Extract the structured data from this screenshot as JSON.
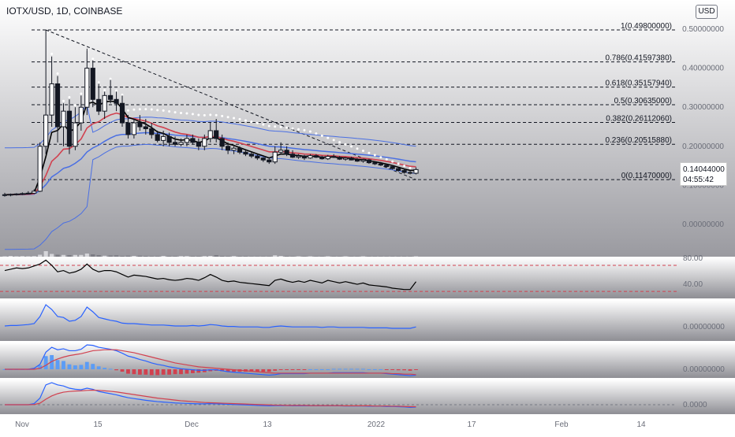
{
  "header": {
    "symbol_title": "IOTX/USD, 1D, COINBASE",
    "currency_button": "USD"
  },
  "price_box": {
    "price": "0.14044000",
    "countdown": "04:55:42"
  },
  "colors": {
    "bull": "#ffffff",
    "bear": "#131722",
    "ema_fast": "#000000",
    "ema_slow": "#d1414f",
    "bb": "#4a6fe3",
    "dots": "#ffffff",
    "fib": "#131722",
    "rsi": "#000000",
    "rsi_band": "#d1414f",
    "osc": "#2962ff",
    "macd": "#2962ff",
    "signal": "#d1414f",
    "hist_up": "#5b9cf6",
    "hist_down": "#d1414f"
  },
  "chart_data": {
    "type": "candlestick",
    "title": "IOTX/USD, 1D, COINBASE",
    "ylim": [
      0.0,
      0.5
    ],
    "x_ticks": [
      "Nov",
      "15",
      "Dec",
      "13",
      "2022",
      "17",
      "Feb",
      "14"
    ],
    "y_ticks": [
      "0.50000000",
      "0.40000000",
      "0.30000000",
      "0.20000000",
      "0.10000000",
      "0.00000000"
    ],
    "fib_levels": [
      {
        "ratio": 1,
        "label": "1(0.49800000)",
        "value": 0.498
      },
      {
        "ratio": 0.786,
        "label": "0.786(0.41597380)",
        "value": 0.4159738
      },
      {
        "ratio": 0.618,
        "label": "0.618(0.35157940)",
        "value": 0.3515794
      },
      {
        "ratio": 0.5,
        "label": "0.5(0.30635000)",
        "value": 0.30635
      },
      {
        "ratio": 0.382,
        "label": "0.382(0.26112060)",
        "value": 0.2611206
      },
      {
        "ratio": 0.236,
        "label": "0.236(0.20515880)",
        "value": 0.2051588
      },
      {
        "ratio": 0,
        "label": "0(0.11470000)",
        "value": 0.1147
      }
    ],
    "candles": [
      [
        0.074,
        0.081,
        0.071,
        0.076
      ],
      [
        0.076,
        0.079,
        0.072,
        0.077
      ],
      [
        0.077,
        0.08,
        0.074,
        0.078
      ],
      [
        0.078,
        0.082,
        0.075,
        0.079
      ],
      [
        0.079,
        0.085,
        0.077,
        0.08
      ],
      [
        0.08,
        0.09,
        0.078,
        0.085
      ],
      [
        0.085,
        0.21,
        0.083,
        0.2
      ],
      [
        0.2,
        0.498,
        0.18,
        0.28
      ],
      [
        0.28,
        0.43,
        0.25,
        0.36
      ],
      [
        0.36,
        0.38,
        0.21,
        0.25
      ],
      [
        0.25,
        0.31,
        0.2,
        0.29
      ],
      [
        0.29,
        0.32,
        0.18,
        0.2
      ],
      [
        0.2,
        0.3,
        0.19,
        0.26
      ],
      [
        0.26,
        0.33,
        0.24,
        0.3
      ],
      [
        0.3,
        0.45,
        0.28,
        0.4
      ],
      [
        0.4,
        0.42,
        0.3,
        0.32
      ],
      [
        0.32,
        0.36,
        0.28,
        0.29
      ],
      [
        0.29,
        0.34,
        0.27,
        0.33
      ],
      [
        0.33,
        0.37,
        0.31,
        0.32
      ],
      [
        0.32,
        0.34,
        0.29,
        0.31
      ],
      [
        0.31,
        0.33,
        0.25,
        0.26
      ],
      [
        0.26,
        0.28,
        0.22,
        0.23
      ],
      [
        0.23,
        0.27,
        0.22,
        0.26
      ],
      [
        0.26,
        0.28,
        0.24,
        0.25
      ],
      [
        0.25,
        0.27,
        0.23,
        0.245
      ],
      [
        0.245,
        0.26,
        0.22,
        0.23
      ],
      [
        0.23,
        0.24,
        0.21,
        0.215
      ],
      [
        0.215,
        0.24,
        0.2,
        0.225
      ],
      [
        0.225,
        0.235,
        0.2,
        0.21
      ],
      [
        0.21,
        0.225,
        0.2,
        0.205
      ],
      [
        0.205,
        0.22,
        0.2,
        0.21
      ],
      [
        0.21,
        0.23,
        0.2,
        0.22
      ],
      [
        0.22,
        0.23,
        0.205,
        0.21
      ],
      [
        0.21,
        0.22,
        0.19,
        0.2
      ],
      [
        0.2,
        0.23,
        0.19,
        0.22
      ],
      [
        0.22,
        0.26,
        0.21,
        0.24
      ],
      [
        0.24,
        0.27,
        0.21,
        0.22
      ],
      [
        0.22,
        0.23,
        0.19,
        0.2
      ],
      [
        0.2,
        0.21,
        0.18,
        0.19
      ],
      [
        0.19,
        0.2,
        0.18,
        0.195
      ],
      [
        0.195,
        0.2,
        0.18,
        0.185
      ],
      [
        0.185,
        0.19,
        0.175,
        0.18
      ],
      [
        0.18,
        0.185,
        0.17,
        0.175
      ],
      [
        0.175,
        0.18,
        0.165,
        0.17
      ],
      [
        0.17,
        0.172,
        0.16,
        0.165
      ],
      [
        0.165,
        0.17,
        0.155,
        0.16
      ],
      [
        0.16,
        0.2,
        0.155,
        0.185
      ],
      [
        0.185,
        0.21,
        0.18,
        0.19
      ],
      [
        0.19,
        0.2,
        0.175,
        0.18
      ],
      [
        0.18,
        0.19,
        0.17,
        0.172
      ],
      [
        0.172,
        0.18,
        0.168,
        0.175
      ],
      [
        0.175,
        0.178,
        0.165,
        0.17
      ],
      [
        0.17,
        0.18,
        0.168,
        0.176
      ],
      [
        0.176,
        0.18,
        0.17,
        0.172
      ],
      [
        0.172,
        0.176,
        0.166,
        0.168
      ],
      [
        0.168,
        0.178,
        0.165,
        0.174
      ],
      [
        0.174,
        0.18,
        0.17,
        0.172
      ],
      [
        0.172,
        0.175,
        0.165,
        0.167
      ],
      [
        0.167,
        0.172,
        0.163,
        0.17
      ],
      [
        0.17,
        0.173,
        0.164,
        0.165
      ],
      [
        0.165,
        0.17,
        0.16,
        0.162
      ],
      [
        0.162,
        0.168,
        0.158,
        0.165
      ],
      [
        0.165,
        0.168,
        0.155,
        0.158
      ],
      [
        0.158,
        0.162,
        0.152,
        0.155
      ],
      [
        0.155,
        0.16,
        0.15,
        0.152
      ],
      [
        0.152,
        0.155,
        0.145,
        0.148
      ],
      [
        0.148,
        0.152,
        0.14,
        0.143
      ],
      [
        0.143,
        0.146,
        0.135,
        0.138
      ],
      [
        0.138,
        0.142,
        0.13,
        0.133
      ],
      [
        0.133,
        0.138,
        0.128,
        0.131
      ],
      [
        0.131,
        0.146,
        0.128,
        0.1404
      ]
    ],
    "volume": [
      2,
      4,
      2,
      3,
      2,
      3,
      10,
      28,
      14,
      10,
      9,
      8,
      9,
      9,
      16,
      12,
      8,
      5,
      6,
      7,
      4,
      5,
      4,
      5,
      4,
      3,
      3,
      4,
      3,
      3,
      3,
      3,
      3,
      3,
      3,
      4,
      8,
      4,
      3,
      3,
      3,
      3,
      2,
      2,
      2,
      2,
      7,
      4,
      3,
      2,
      2,
      2,
      2,
      2,
      2,
      2,
      2,
      2,
      2,
      2,
      2,
      2,
      2,
      2,
      2,
      2,
      2,
      2,
      2,
      2,
      2
    ],
    "rsi": {
      "upper": 70,
      "lower": 30,
      "tick_labels": [
        "80.00",
        "40.00"
      ],
      "values": [
        62,
        64,
        66,
        65,
        66,
        69,
        72,
        78,
        70,
        60,
        62,
        58,
        60,
        64,
        72,
        64,
        60,
        62,
        62,
        60,
        56,
        52,
        55,
        54,
        53,
        51,
        49,
        50,
        48,
        47,
        48,
        50,
        49,
        47,
        51,
        56,
        52,
        47,
        45,
        46,
        44,
        43,
        42,
        41,
        40,
        39,
        47,
        49,
        46,
        44,
        46,
        44,
        47,
        45,
        43,
        47,
        45,
        43,
        45,
        43,
        41,
        43,
        40,
        39,
        38,
        37,
        35,
        34,
        33,
        33,
        45
      ]
    },
    "oscillator": {
      "tick_labels": [
        "0.00000000"
      ],
      "values": [
        0.0,
        0.01,
        0.01,
        0.02,
        0.03,
        0.05,
        0.2,
        0.45,
        0.35,
        0.2,
        0.18,
        0.1,
        0.12,
        0.2,
        0.4,
        0.3,
        0.18,
        0.15,
        0.12,
        0.1,
        0.06,
        0.05,
        0.05,
        0.04,
        0.03,
        0.02,
        0.02,
        0.02,
        0.01,
        0.0,
        0.0,
        0.0,
        0.01,
        0.0,
        0.01,
        0.03,
        0.02,
        0.0,
        -0.01,
        -0.01,
        -0.02,
        -0.02,
        -0.02,
        -0.02,
        -0.03,
        -0.03,
        -0.01,
        0.0,
        -0.01,
        -0.02,
        -0.02,
        -0.02,
        -0.02,
        -0.02,
        -0.03,
        -0.02,
        -0.02,
        -0.03,
        -0.03,
        -0.03,
        -0.03,
        -0.03,
        -0.04,
        -0.04,
        -0.04,
        -0.04,
        -0.05,
        -0.05,
        -0.05,
        -0.05,
        -0.02
      ]
    },
    "macd": {
      "tick_labels": [
        "0.00000000"
      ],
      "macd": [
        0,
        0,
        0,
        0,
        0,
        0.002,
        0.01,
        0.035,
        0.045,
        0.04,
        0.042,
        0.038,
        0.038,
        0.041,
        0.05,
        0.049,
        0.045,
        0.043,
        0.041,
        0.038,
        0.033,
        0.027,
        0.024,
        0.02,
        0.017,
        0.013,
        0.01,
        0.008,
        0.005,
        0.003,
        0.001,
        0.0,
        -0.001,
        -0.002,
        -0.002,
        -0.001,
        -0.001,
        -0.003,
        -0.005,
        -0.006,
        -0.007,
        -0.008,
        -0.009,
        -0.01,
        -0.011,
        -0.012,
        -0.011,
        -0.009,
        -0.009,
        -0.009,
        -0.009,
        -0.009,
        -0.008,
        -0.008,
        -0.008,
        -0.008,
        -0.007,
        -0.007,
        -0.007,
        -0.007,
        -0.007,
        -0.007,
        -0.008,
        -0.008,
        -0.008,
        -0.009,
        -0.01,
        -0.011,
        -0.012,
        -0.013,
        -0.012
      ],
      "signal": [
        0,
        0,
        0,
        0,
        0,
        0,
        0.002,
        0.008,
        0.016,
        0.021,
        0.025,
        0.028,
        0.03,
        0.032,
        0.035,
        0.038,
        0.039,
        0.04,
        0.04,
        0.04,
        0.038,
        0.036,
        0.034,
        0.031,
        0.028,
        0.025,
        0.022,
        0.019,
        0.016,
        0.013,
        0.011,
        0.009,
        0.007,
        0.005,
        0.004,
        0.003,
        0.002,
        0.001,
        0.0,
        -0.001,
        -0.002,
        -0.003,
        -0.004,
        -0.005,
        -0.006,
        -0.007,
        -0.008,
        -0.008,
        -0.008,
        -0.008,
        -0.008,
        -0.008,
        -0.008,
        -0.008,
        -0.008,
        -0.008,
        -0.008,
        -0.008,
        -0.008,
        -0.008,
        -0.008,
        -0.008,
        -0.008,
        -0.008,
        -0.008,
        -0.008,
        -0.009,
        -0.009,
        -0.01,
        -0.01,
        -0.011
      ]
    },
    "pvo": {
      "tick_labels": [
        "0.0000"
      ],
      "line1": [
        0,
        0,
        0,
        0,
        0,
        0.05,
        0.3,
        0.9,
        1.0,
        0.9,
        0.85,
        0.75,
        0.7,
        0.68,
        0.75,
        0.7,
        0.6,
        0.55,
        0.5,
        0.45,
        0.38,
        0.32,
        0.28,
        0.24,
        0.2,
        0.17,
        0.14,
        0.12,
        0.1,
        0.08,
        0.07,
        0.06,
        0.05,
        0.04,
        0.04,
        0.05,
        0.04,
        0.03,
        0.02,
        0.01,
        0.0,
        -0.01,
        -0.02,
        -0.03,
        -0.04,
        -0.05,
        -0.04,
        -0.04,
        -0.04,
        -0.05,
        -0.05,
        -0.05,
        -0.05,
        -0.05,
        -0.05,
        -0.05,
        -0.05,
        -0.05,
        -0.06,
        -0.06,
        -0.06,
        -0.06,
        -0.07,
        -0.07,
        -0.07,
        -0.08,
        -0.08,
        -0.09,
        -0.1,
        -0.12,
        -0.11
      ],
      "line2": [
        0,
        0,
        0,
        0,
        0,
        0.01,
        0.07,
        0.25,
        0.4,
        0.5,
        0.57,
        0.6,
        0.62,
        0.63,
        0.65,
        0.66,
        0.65,
        0.63,
        0.61,
        0.58,
        0.54,
        0.5,
        0.46,
        0.42,
        0.38,
        0.34,
        0.3,
        0.27,
        0.24,
        0.21,
        0.18,
        0.16,
        0.14,
        0.12,
        0.1,
        0.09,
        0.08,
        0.07,
        0.06,
        0.05,
        0.04,
        0.03,
        0.02,
        0.01,
        0.0,
        -0.01,
        -0.02,
        -0.02,
        -0.03,
        -0.03,
        -0.03,
        -0.03,
        -0.04,
        -0.04,
        -0.04,
        -0.04,
        -0.04,
        -0.04,
        -0.05,
        -0.05,
        -0.05,
        -0.05,
        -0.05,
        -0.06,
        -0.06,
        -0.06,
        -0.07,
        -0.07,
        -0.08,
        -0.09,
        -0.09
      ]
    }
  }
}
